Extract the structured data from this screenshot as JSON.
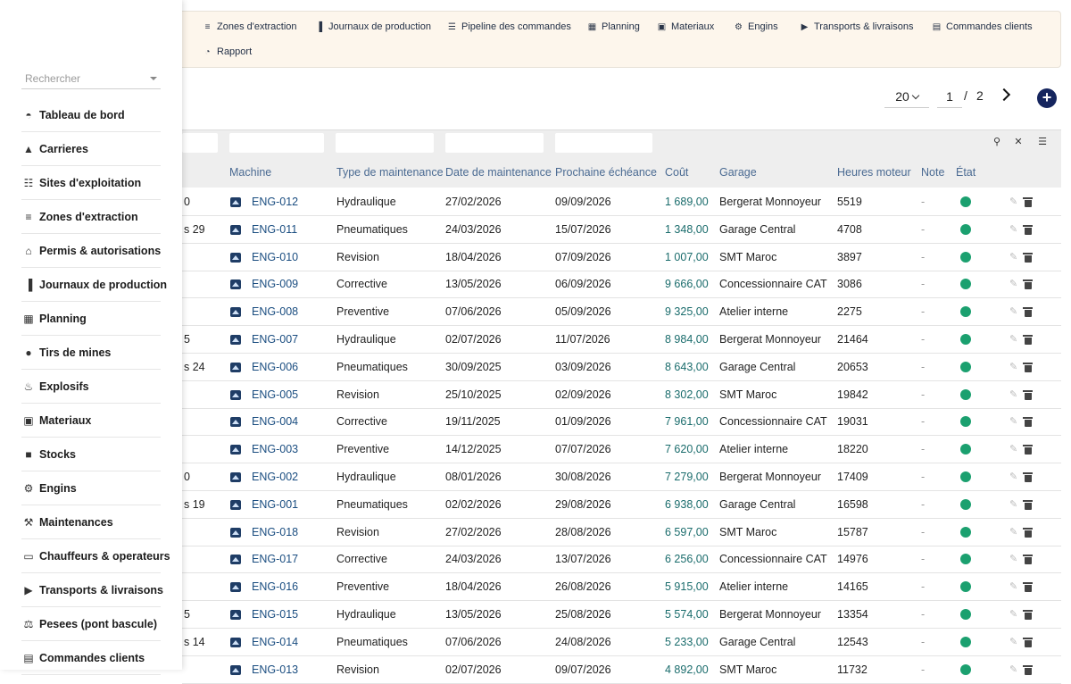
{
  "topnav": [
    {
      "label": "Zones d'extraction",
      "icon": "layers-icon"
    },
    {
      "label": "Journaux de production",
      "icon": "bar-chart-icon"
    },
    {
      "label": "Pipeline des commandes",
      "icon": "list-icon"
    },
    {
      "label": "Planning",
      "icon": "calendar-icon"
    },
    {
      "label": "Materiaux",
      "icon": "boxes-icon"
    },
    {
      "label": "Engins",
      "icon": "tractor-icon"
    },
    {
      "label": "Transports & livraisons",
      "icon": "truck-icon"
    },
    {
      "label": "Commandes clients",
      "icon": "clipboard-icon"
    },
    {
      "label": "Rapport",
      "icon": "pie-chart-icon"
    }
  ],
  "sidebar": {
    "search_placeholder": "Rechercher",
    "items": [
      {
        "label": "Tableau de bord",
        "icon": "dashboard-icon"
      },
      {
        "label": "Carrieres",
        "icon": "mountain-icon"
      },
      {
        "label": "Sites d'exploitation",
        "icon": "sitemap-icon"
      },
      {
        "label": "Zones d'extraction",
        "icon": "layers-icon"
      },
      {
        "label": "Permis & autorisations",
        "icon": "stamp-icon"
      },
      {
        "label": "Journaux de production",
        "icon": "bar-chart-icon"
      },
      {
        "label": "Planning",
        "icon": "calendar-icon"
      },
      {
        "label": "Tirs de mines",
        "icon": "bomb-icon"
      },
      {
        "label": "Explosifs",
        "icon": "fire-icon"
      },
      {
        "label": "Materiaux",
        "icon": "boxes-icon"
      },
      {
        "label": "Stocks",
        "icon": "stock-icon"
      },
      {
        "label": "Engins",
        "icon": "tractor-icon"
      },
      {
        "label": "Maintenances",
        "icon": "wrench-icon"
      },
      {
        "label": "Chauffeurs & operateurs",
        "icon": "id-card-icon"
      },
      {
        "label": "Transports & livraisons",
        "icon": "truck-icon"
      },
      {
        "label": "Pesees (pont bascule)",
        "icon": "scale-icon"
      },
      {
        "label": "Commandes clients",
        "icon": "clipboard-icon"
      }
    ]
  },
  "pager": {
    "page_size": "20",
    "page": "1",
    "separator": "/",
    "total_pages": "2"
  },
  "table": {
    "columns": [
      "Machine",
      "Type de maintenance",
      "Date de maintenance",
      "Prochaine échéance",
      "Coût",
      "Garage",
      "Heures moteur",
      "Note",
      "État"
    ],
    "rows": [
      {
        "lead": "0",
        "machine": "ENG-012",
        "type": "Hydraulique",
        "date": "27/02/2026",
        "next": "09/09/2026",
        "cost": "1 689,00",
        "garage": "Bergerat Monnoyeur",
        "hours": "5519",
        "note": "-"
      },
      {
        "lead": "s 29",
        "machine": "ENG-011",
        "type": "Pneumatiques",
        "date": "24/03/2026",
        "next": "15/07/2026",
        "cost": "1 348,00",
        "garage": "Garage Central",
        "hours": "4708",
        "note": "-"
      },
      {
        "lead": "",
        "machine": "ENG-010",
        "type": "Revision",
        "date": "18/04/2026",
        "next": "07/09/2026",
        "cost": "1 007,00",
        "garage": "SMT Maroc",
        "hours": "3897",
        "note": "-"
      },
      {
        "lead": "",
        "machine": "ENG-009",
        "type": "Corrective",
        "date": "13/05/2026",
        "next": "06/09/2026",
        "cost": "9 666,00",
        "garage": "Concessionnaire CAT",
        "hours": "3086",
        "note": "-"
      },
      {
        "lead": "",
        "machine": "ENG-008",
        "type": "Preventive",
        "date": "07/06/2026",
        "next": "05/09/2026",
        "cost": "9 325,00",
        "garage": "Atelier interne",
        "hours": "2275",
        "note": "-"
      },
      {
        "lead": "5",
        "machine": "ENG-007",
        "type": "Hydraulique",
        "date": "02/07/2026",
        "next": "11/07/2026",
        "cost": "8 984,00",
        "garage": "Bergerat Monnoyeur",
        "hours": "21464",
        "note": "-"
      },
      {
        "lead": "s 24",
        "machine": "ENG-006",
        "type": "Pneumatiques",
        "date": "30/09/2025",
        "next": "03/09/2026",
        "cost": "8 643,00",
        "garage": "Garage Central",
        "hours": "20653",
        "note": "-"
      },
      {
        "lead": "",
        "machine": "ENG-005",
        "type": "Revision",
        "date": "25/10/2025",
        "next": "02/09/2026",
        "cost": "8 302,00",
        "garage": "SMT Maroc",
        "hours": "19842",
        "note": "-"
      },
      {
        "lead": "",
        "machine": "ENG-004",
        "type": "Corrective",
        "date": "19/11/2025",
        "next": "01/09/2026",
        "cost": "7 961,00",
        "garage": "Concessionnaire CAT",
        "hours": "19031",
        "note": "-"
      },
      {
        "lead": "",
        "machine": "ENG-003",
        "type": "Preventive",
        "date": "14/12/2025",
        "next": "07/07/2026",
        "cost": "7 620,00",
        "garage": "Atelier interne",
        "hours": "18220",
        "note": "-"
      },
      {
        "lead": "0",
        "machine": "ENG-002",
        "type": "Hydraulique",
        "date": "08/01/2026",
        "next": "30/08/2026",
        "cost": "7 279,00",
        "garage": "Bergerat Monnoyeur",
        "hours": "17409",
        "note": "-"
      },
      {
        "lead": "s 19",
        "machine": "ENG-001",
        "type": "Pneumatiques",
        "date": "02/02/2026",
        "next": "29/08/2026",
        "cost": "6 938,00",
        "garage": "Garage Central",
        "hours": "16598",
        "note": "-"
      },
      {
        "lead": "",
        "machine": "ENG-018",
        "type": "Revision",
        "date": "27/02/2026",
        "next": "28/08/2026",
        "cost": "6 597,00",
        "garage": "SMT Maroc",
        "hours": "15787",
        "note": "-"
      },
      {
        "lead": "",
        "machine": "ENG-017",
        "type": "Corrective",
        "date": "24/03/2026",
        "next": "13/07/2026",
        "cost": "6 256,00",
        "garage": "Concessionnaire CAT",
        "hours": "14976",
        "note": "-"
      },
      {
        "lead": "",
        "machine": "ENG-016",
        "type": "Preventive",
        "date": "18/04/2026",
        "next": "26/08/2026",
        "cost": "5 915,00",
        "garage": "Atelier interne",
        "hours": "14165",
        "note": "-"
      },
      {
        "lead": "5",
        "machine": "ENG-015",
        "type": "Hydraulique",
        "date": "13/05/2026",
        "next": "25/08/2026",
        "cost": "5 574,00",
        "garage": "Bergerat Monnoyeur",
        "hours": "13354",
        "note": "-"
      },
      {
        "lead": "s 14",
        "machine": "ENG-014",
        "type": "Pneumatiques",
        "date": "07/06/2026",
        "next": "24/08/2026",
        "cost": "5 233,00",
        "garage": "Garage Central",
        "hours": "12543",
        "note": "-"
      },
      {
        "lead": "",
        "machine": "ENG-013",
        "type": "Revision",
        "date": "02/07/2026",
        "next": "09/07/2026",
        "cost": "4 892,00",
        "garage": "SMT Maroc",
        "hours": "11732",
        "note": "-"
      }
    ]
  },
  "colors": {
    "accent": "#15255e",
    "status_ok": "#1ba06f",
    "header_text": "#4a6a92"
  }
}
